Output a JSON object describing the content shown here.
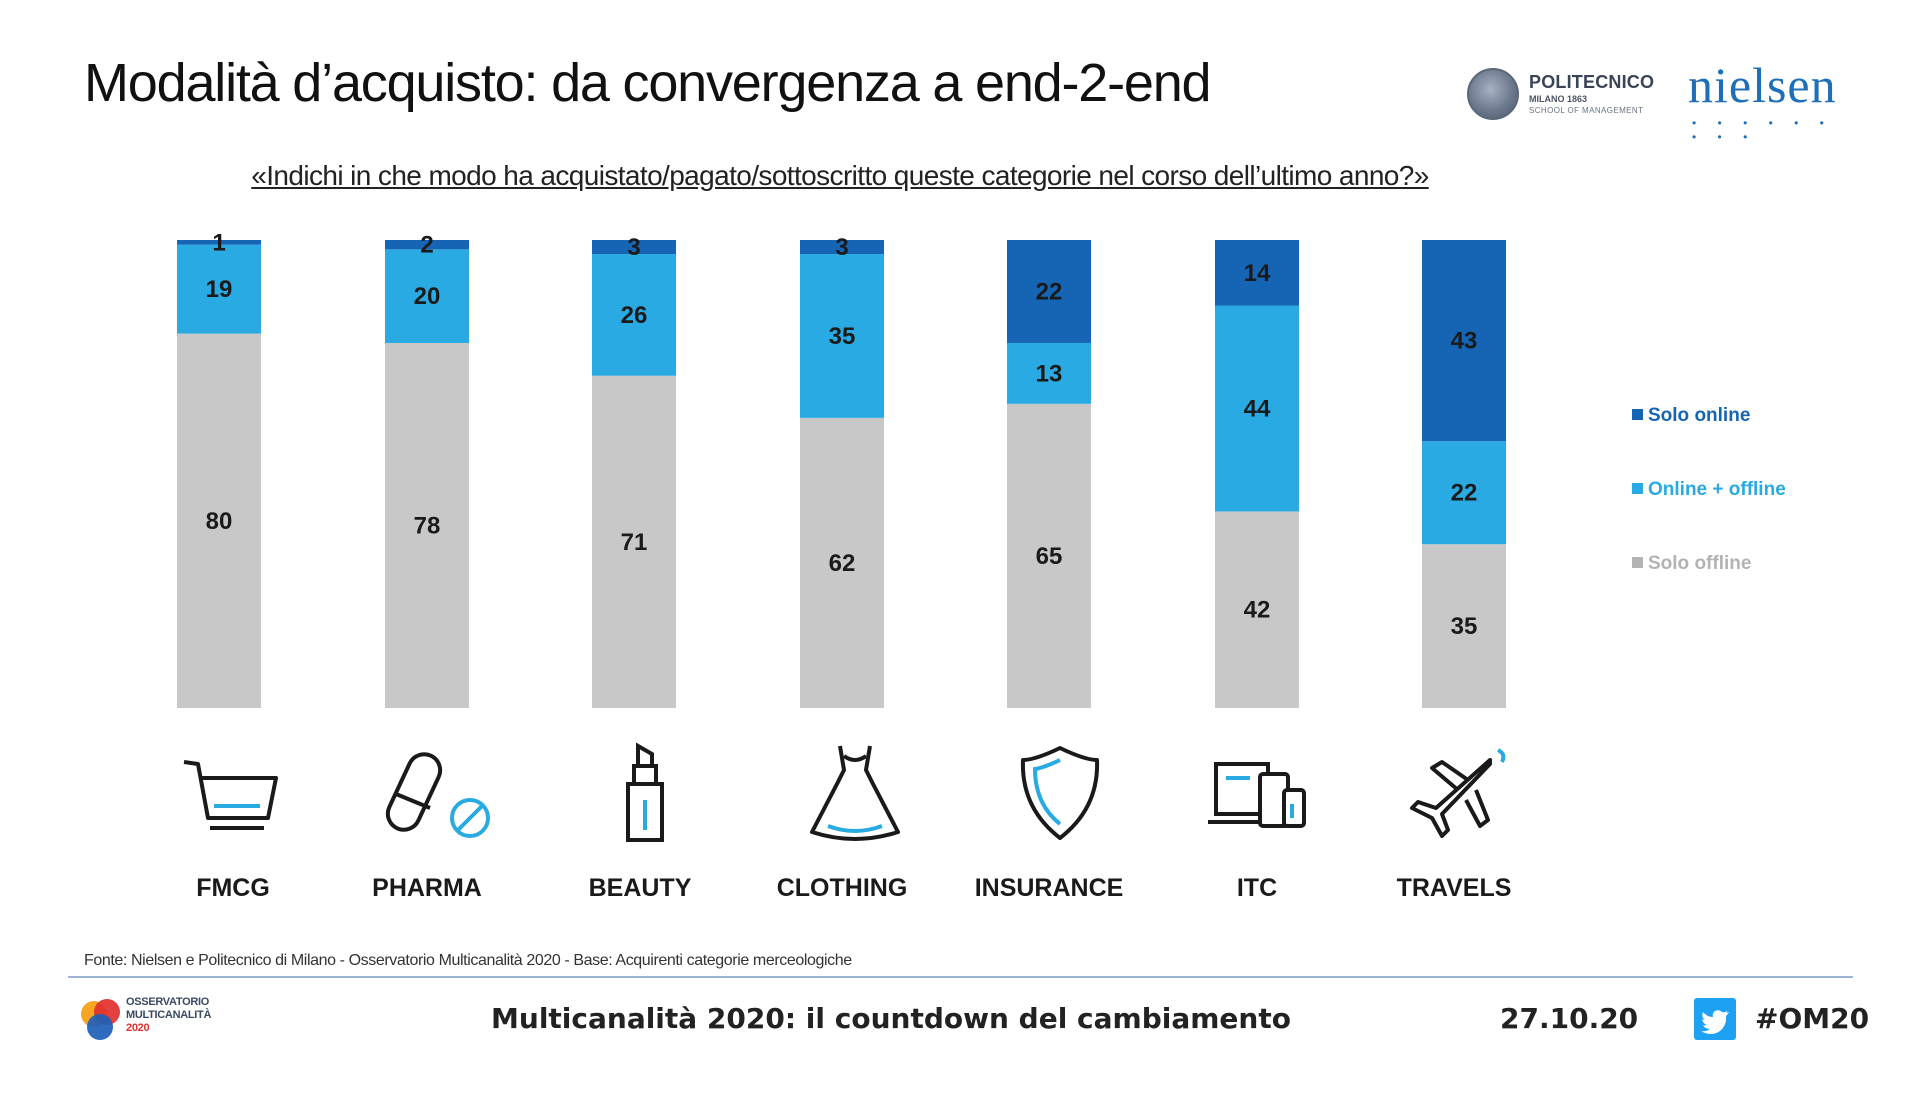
{
  "header": {
    "title": "Modalità d’acquisto: da convergenza a end-2-end",
    "subtitle": "«Indichi in che modo ha acquistato/pagato/sottoscritto  queste categorie nel corso dell’ultimo  anno?»"
  },
  "logos": {
    "politecnico": {
      "name": "POLITECNICO",
      "line1": "MILANO 1863",
      "line2": "SCHOOL OF MANAGEMENT"
    },
    "nielsen": {
      "name": "nielsen",
      "dots": "• • • • • • • • •"
    }
  },
  "colors": {
    "solo_online": "#1565b4",
    "online_offline": "#29aae2",
    "solo_offline": "#c8c8c8",
    "accent": "#1d6fb8"
  },
  "chart_data": {
    "type": "bar",
    "stacked": true,
    "categories": [
      "FMCG",
      "PHARMA",
      "BEAUTY",
      "CLOTHING",
      "INSURANCE",
      "ITC",
      "TRAVELS"
    ],
    "series": [
      {
        "name": "Solo offline",
        "values": [
          80,
          78,
          71,
          62,
          65,
          42,
          35
        ]
      },
      {
        "name": "Online + offline",
        "values": [
          19,
          20,
          26,
          35,
          13,
          44,
          22
        ]
      },
      {
        "name": "Solo online",
        "values": [
          1,
          2,
          3,
          3,
          22,
          14,
          43
        ]
      }
    ],
    "legend_order": [
      "Solo online",
      "Online + offline",
      "Solo offline"
    ],
    "legend_position": "right",
    "ylim": [
      0,
      100
    ],
    "grid": false
  },
  "icons": [
    "shopping-cart-icon",
    "pill-icon",
    "lipstick-icon",
    "dress-icon",
    "shield-icon",
    "devices-icon",
    "airplane-icon"
  ],
  "footer": {
    "source": "Fonte: Nielsen e Politecnico  di Milano - Osservatorio  Multicanalità  2020 - Base:  Acquirenti  categorie merceologiche",
    "center": "Multicanalità  2020: il countdown  del cambiamento",
    "date": "27.10.20",
    "hashtag": "#OM20",
    "om_logo": {
      "l1": "OSSERVATORIO",
      "l2": "MULTICANALITÀ",
      "l3": "2020"
    }
  }
}
